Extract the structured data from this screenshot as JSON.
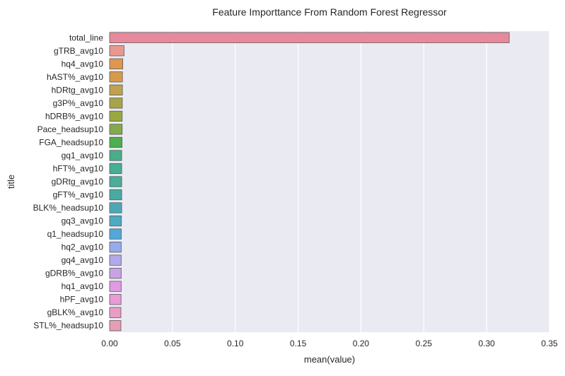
{
  "chart_data": {
    "type": "bar",
    "orientation": "horizontal",
    "title": "Feature Importtance From Random Forest Regressor",
    "xlabel": "mean(value)",
    "ylabel": "title",
    "xlim": [
      0.0,
      0.35
    ],
    "xticks": [
      "0.00",
      "0.05",
      "0.10",
      "0.15",
      "0.20",
      "0.25",
      "0.30",
      "0.35"
    ],
    "grid": true,
    "categories": [
      "total_line",
      "gTRB_avg10",
      "hq4_avg10",
      "hAST%_avg10",
      "hDRtg_avg10",
      "g3P%_avg10",
      "hDRB%_avg10",
      "Pace_headsup10",
      "FGA_headsup10",
      "gq1_avg10",
      "hFT%_avg10",
      "gDRtg_avg10",
      "gFT%_avg10",
      "BLK%_headsup10",
      "gq3_avg10",
      "q1_headsup10",
      "hq2_avg10",
      "gq4_avg10",
      "gDRB%_avg10",
      "hq1_avg10",
      "hPF_avg10",
      "gBLK%_avg10",
      "STL%_headsup10"
    ],
    "values": [
      0.318,
      0.0115,
      0.0105,
      0.0102,
      0.0102,
      0.0101,
      0.01,
      0.01,
      0.0099,
      0.0096,
      0.0096,
      0.0096,
      0.0096,
      0.0096,
      0.0094,
      0.0093,
      0.0092,
      0.0092,
      0.0092,
      0.0092,
      0.0091,
      0.009,
      0.009
    ],
    "colors": [
      "#e8899b",
      "#e8988e",
      "#e09550",
      "#d69a48",
      "#c0a24e",
      "#a6a447",
      "#9aa93f",
      "#82aa4a",
      "#4caf50",
      "#49ad88",
      "#48ad95",
      "#48ad99",
      "#49aaa4",
      "#4ba9b6",
      "#4daac3",
      "#53a8d9",
      "#95ace8",
      "#b2a9e8",
      "#c9a2e6",
      "#e09be4",
      "#e89bd5",
      "#e89dc5",
      "#e99cb5"
    ]
  }
}
